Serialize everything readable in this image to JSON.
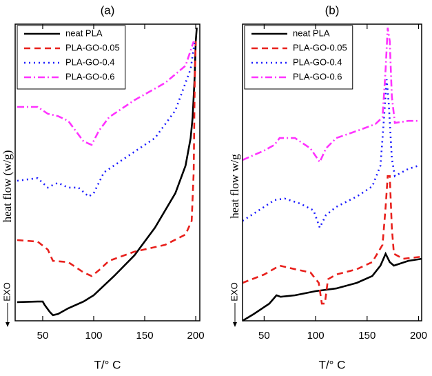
{
  "chart_data": [
    {
      "type": "line",
      "title": "(a)",
      "xlabel": "T/° C",
      "ylabel": "heat flow (w/g)",
      "annotation": "EXO",
      "xlim": [
        23,
        204
      ],
      "ylim": [
        0,
        100
      ],
      "xticks": [
        50,
        100,
        150,
        200
      ],
      "legend": "upper left",
      "series": [
        {
          "name": "neat PLA",
          "color": "#000000",
          "dash": "solid",
          "x": [
            25,
            45,
            50,
            52,
            57,
            60,
            65,
            75,
            90,
            100,
            120,
            140,
            160,
            180,
            190,
            195,
            197,
            199,
            200,
            201
          ],
          "values": [
            6.3,
            6.5,
            6.5,
            5.3,
            3.0,
            1.9,
            2.3,
            4.2,
            6.5,
            8.6,
            15.1,
            22.1,
            31.4,
            43.0,
            52.3,
            61.6,
            68.6,
            82.6,
            94.2,
            98.8
          ]
        },
        {
          "name": "PLA-GO-0.05",
          "color": "#e8201c",
          "dash": "dashed",
          "x": [
            25,
            45,
            55,
            60,
            75,
            90,
            98,
            105,
            115,
            140,
            170,
            190,
            196,
            198,
            199,
            200
          ],
          "values": [
            27.2,
            26.7,
            24.0,
            20.2,
            19.8,
            16.3,
            15.1,
            17.0,
            20.2,
            23.3,
            25.6,
            29.1,
            33.7,
            50.0,
            80.2,
            94.2
          ]
        },
        {
          "name": "PLA-GO-0.4",
          "color": "#1a1aff",
          "dash": "dotted",
          "x": [
            25,
            45,
            55,
            60,
            65,
            75,
            85,
            95,
            100,
            110,
            130,
            160,
            180,
            195,
            199
          ],
          "values": [
            47.2,
            48.1,
            44.9,
            45.8,
            46.5,
            44.9,
            44.9,
            41.9,
            43.0,
            50.0,
            54.7,
            61.6,
            70.9,
            84.9,
            94.2
          ]
        },
        {
          "name": "PLA-GO-0.6",
          "color": "#ff33ff",
          "dash": "dashdot",
          "x": [
            25,
            45,
            55,
            65,
            75,
            90,
            98,
            105,
            115,
            140,
            170,
            190,
            198
          ],
          "values": [
            72.1,
            72.1,
            69.8,
            69.0,
            67.4,
            60.5,
            59.3,
            64.0,
            68.6,
            74.4,
            80.2,
            86.0,
            94.2
          ]
        }
      ]
    },
    {
      "type": "line",
      "title": "(b)",
      "xlabel": "T/° C",
      "ylabel": "heat flow w/g",
      "annotation": "EXO",
      "xlim": [
        29,
        203
      ],
      "ylim": [
        0,
        100
      ],
      "xticks": [
        50,
        100,
        150,
        200
      ],
      "legend": "upper left",
      "series": [
        {
          "name": "neat PLA",
          "color": "#000000",
          "dash": "solid",
          "x": [
            29,
            40,
            55,
            62,
            66,
            80,
            100,
            120,
            140,
            155,
            163,
            168,
            172,
            176,
            190,
            203
          ],
          "values": [
            0,
            2.3,
            5.8,
            8.6,
            8.1,
            8.6,
            10.0,
            10.9,
            12.8,
            15.1,
            18.6,
            22.6,
            19.8,
            18.6,
            20.2,
            20.9
          ]
        },
        {
          "name": "PLA-GO-0.05",
          "color": "#e8201c",
          "dash": "dashed",
          "x": [
            29,
            50,
            65,
            80,
            95,
            103,
            106,
            109,
            112,
            120,
            140,
            155,
            165,
            168,
            170,
            172,
            174,
            176,
            185,
            203
          ],
          "values": [
            12.8,
            15.6,
            18.6,
            17.4,
            16.3,
            12.8,
            5.8,
            5.8,
            14.0,
            15.6,
            17.4,
            19.8,
            25.6,
            38.4,
            48.8,
            48.8,
            31.4,
            22.6,
            20.9,
            21.6
          ]
        },
        {
          "name": "PLA-GO-0.4",
          "color": "#1a1aff",
          "dash": "dotted",
          "x": [
            29,
            50,
            60,
            70,
            85,
            98,
            104,
            110,
            120,
            140,
            155,
            163,
            166,
            169,
            171,
            174,
            177,
            190,
            200
          ],
          "values": [
            33.7,
            38.4,
            40.7,
            41.2,
            39.5,
            37.2,
            31.4,
            35.6,
            38.4,
            41.9,
            45.3,
            52.3,
            66.3,
            81.4,
            73.3,
            54.7,
            48.8,
            51.2,
            52.3
          ]
        },
        {
          "name": "PLA-GO-0.6",
          "color": "#ff33ff",
          "dash": "dashdot",
          "x": [
            29,
            50,
            60,
            65,
            80,
            95,
            104,
            110,
            120,
            140,
            158,
            165,
            168,
            170,
            172,
            174,
            177,
            190,
            200
          ],
          "values": [
            54.2,
            57.4,
            59.3,
            61.6,
            61.6,
            58.1,
            53.5,
            58.1,
            61.6,
            64.0,
            66.3,
            68.6,
            84.9,
            98.8,
            94.2,
            75.6,
            66.7,
            67.4,
            67.4
          ]
        }
      ]
    }
  ]
}
